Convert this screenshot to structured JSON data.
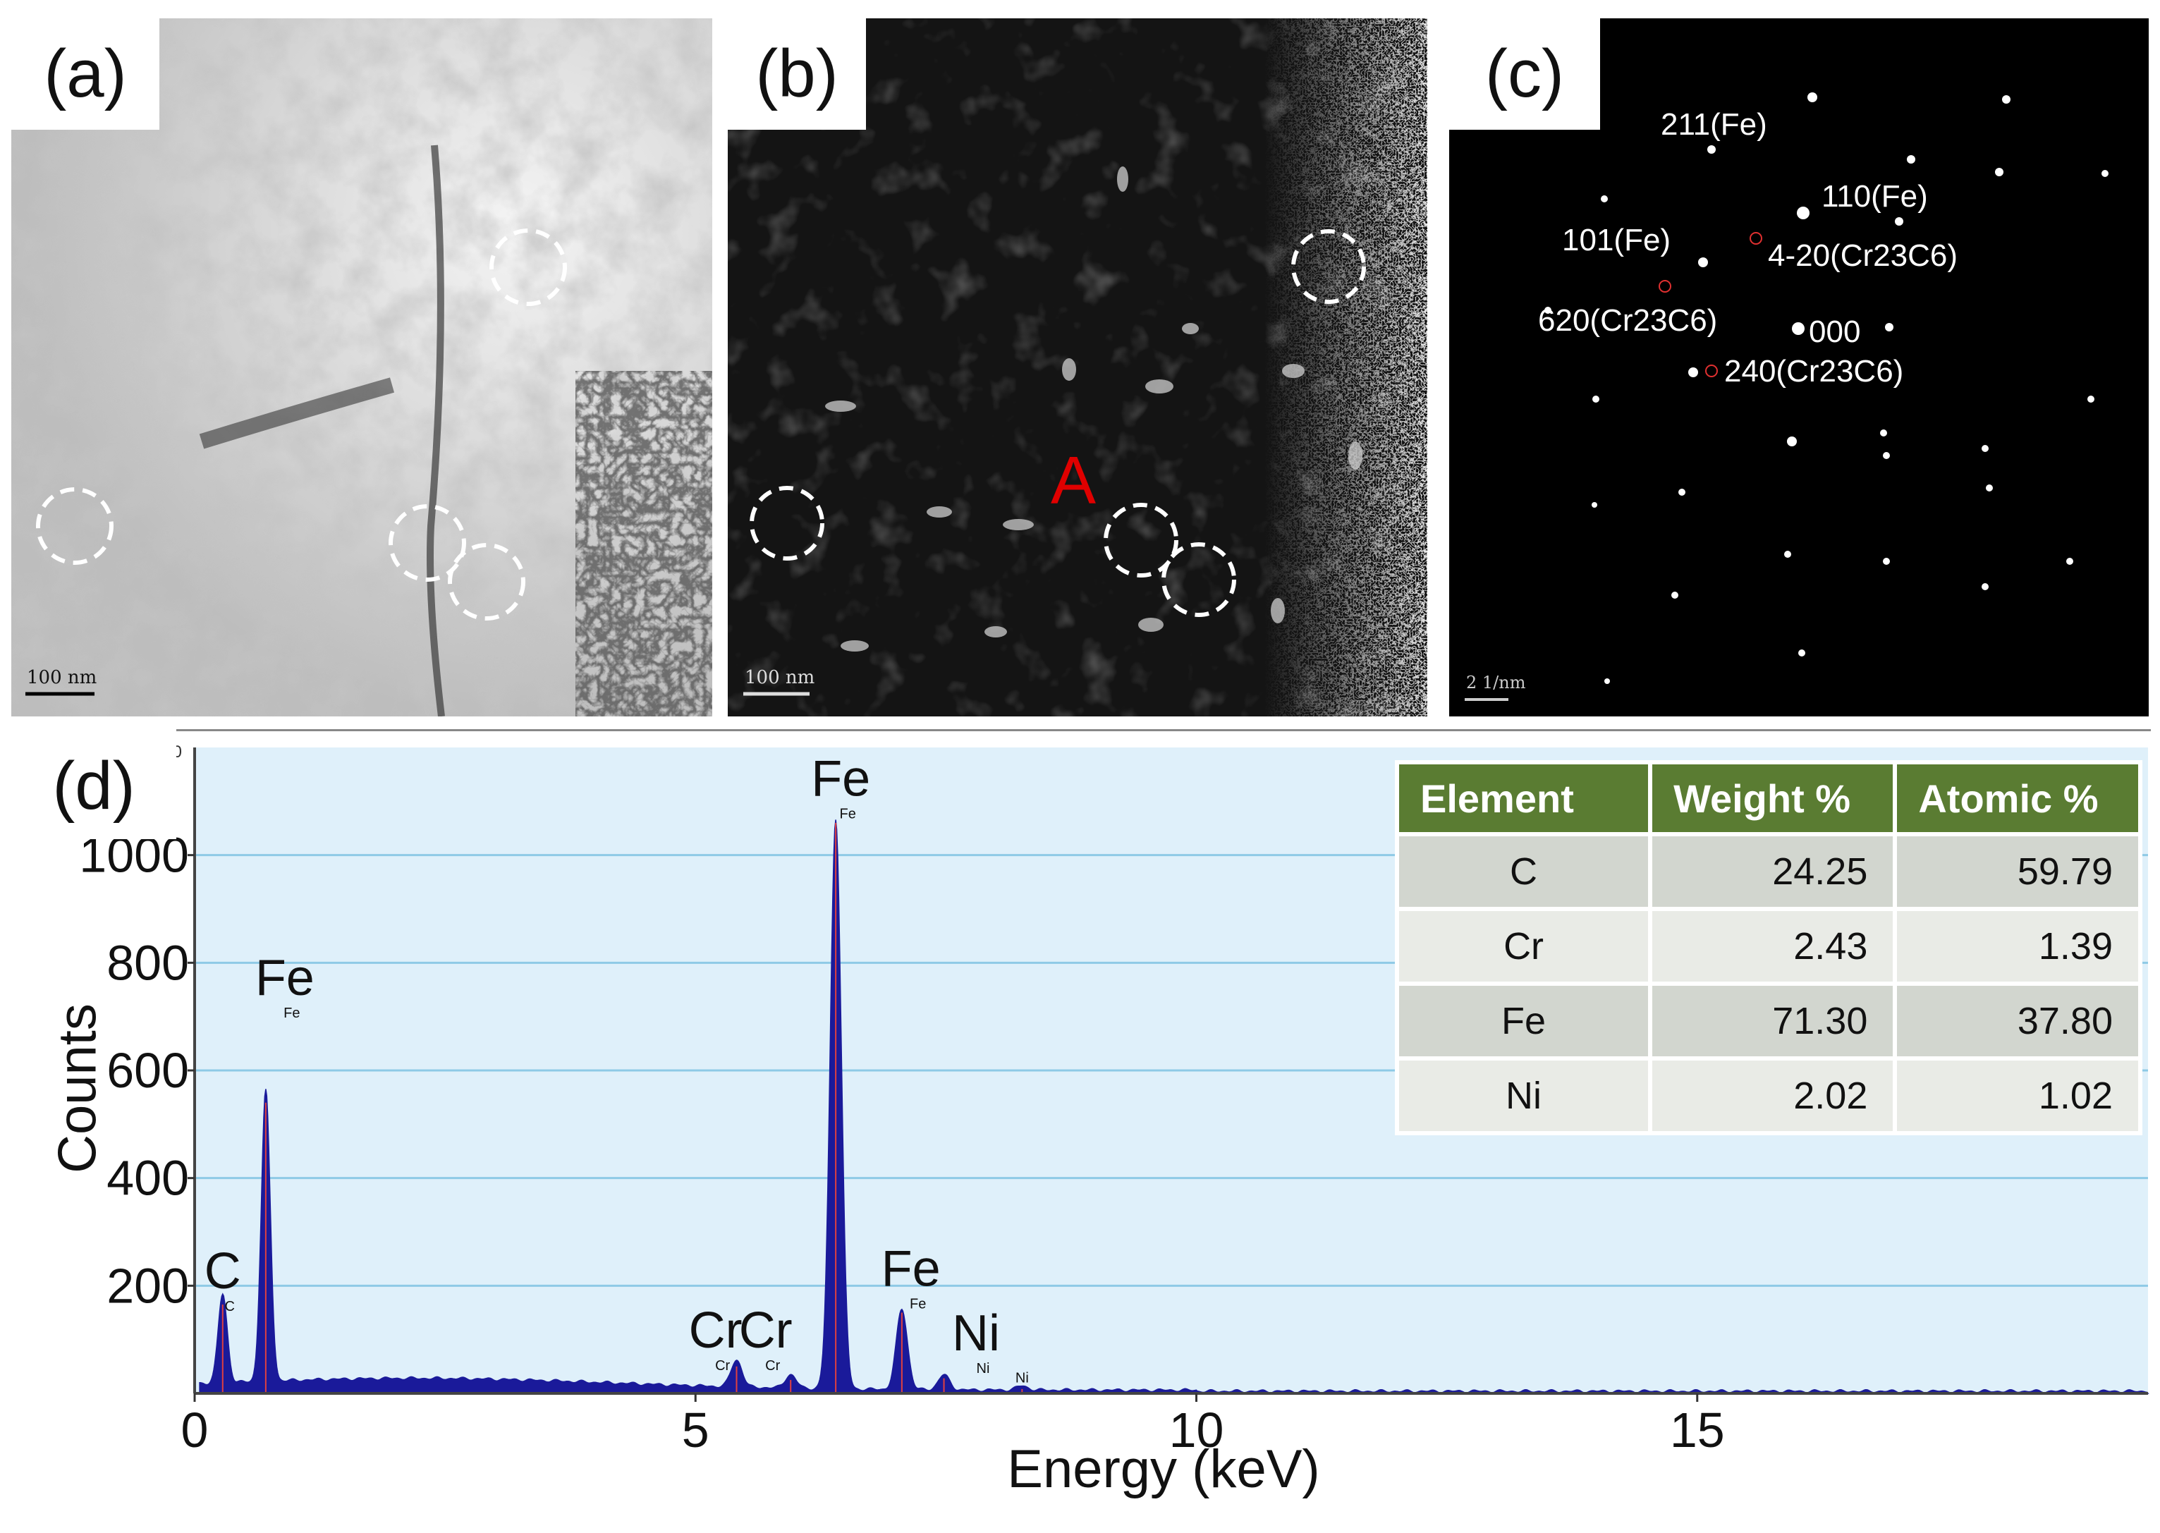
{
  "figure": {
    "panels": [
      {
        "label": "(a)",
        "scale_bar": "100 nm",
        "mode": "bright-field"
      },
      {
        "label": "(b)",
        "scale_bar": "100 nm",
        "mode": "dark-field",
        "marker": "A"
      },
      {
        "label": "(c)",
        "scale_bar": "2 1/nm",
        "mode": "diffraction",
        "spots": [
          "211(Fe)",
          "110(Fe)",
          "101(Fe)",
          "4-20(Cr23C6)",
          "620(Cr23C6)",
          "000",
          "240(Cr23C6)"
        ]
      },
      {
        "label": "(d)"
      }
    ]
  },
  "eds_table": {
    "headers": [
      "Element",
      "Weight %",
      "Atomic %"
    ],
    "rows": [
      [
        "C",
        "24.25",
        "59.79"
      ],
      [
        "Cr",
        "2.43",
        "1.39"
      ],
      [
        "Fe",
        "71.30",
        "37.80"
      ],
      [
        "Ni",
        "2.02",
        "1.02"
      ]
    ]
  },
  "colors": {
    "plot_bg": "#dff0fa",
    "grid": "#8ecae6",
    "spectrum": "#1a1a9a",
    "header": "#5a7c32",
    "marker_red": "#e00000"
  },
  "chart_data": {
    "type": "area",
    "xlabel": "Energy (keV)",
    "ylabel": "Counts",
    "xlim": [
      0,
      19.5
    ],
    "ylim": [
      0,
      1200
    ],
    "xticks": [
      0,
      5,
      10,
      15
    ],
    "yticks": [
      200,
      400,
      600,
      800,
      1000
    ],
    "top_tick": "0",
    "grid": true,
    "peaks": [
      {
        "element": "C",
        "energy": 0.28,
        "counts": 165
      },
      {
        "element": "Fe",
        "energy": 0.71,
        "counts": 540
      },
      {
        "element": "Cr",
        "energy": 5.41,
        "counts": 50
      },
      {
        "element": "Cr",
        "energy": 5.95,
        "counts": 25
      },
      {
        "element": "Fe",
        "energy": 6.4,
        "counts": 1060
      },
      {
        "element": "Fe",
        "energy": 7.06,
        "counts": 150
      },
      {
        "element": "Ni",
        "energy": 7.48,
        "counts": 28
      },
      {
        "element": "Ni",
        "energy": 8.26,
        "counts": 8
      }
    ],
    "peak_labels": [
      {
        "text": "C",
        "energy": 0.28,
        "counts": 195,
        "small": "C"
      },
      {
        "text": "Fe",
        "energy": 0.9,
        "counts": 740,
        "small": "Fe"
      },
      {
        "text": "Cr",
        "energy": 5.2,
        "counts": 85,
        "small": "Cr"
      },
      {
        "text": "Cr",
        "energy": 5.7,
        "counts": 85,
        "small": "Cr"
      },
      {
        "text": "Fe",
        "energy": 6.45,
        "counts": 1110,
        "small": "Fe"
      },
      {
        "text": "Fe",
        "energy": 7.15,
        "counts": 200,
        "small": "Fe"
      },
      {
        "text": "Ni",
        "energy": 7.8,
        "counts": 80,
        "small": "Ni"
      },
      {
        "text": "",
        "energy": 8.26,
        "counts": 20,
        "small": "Ni"
      }
    ]
  }
}
